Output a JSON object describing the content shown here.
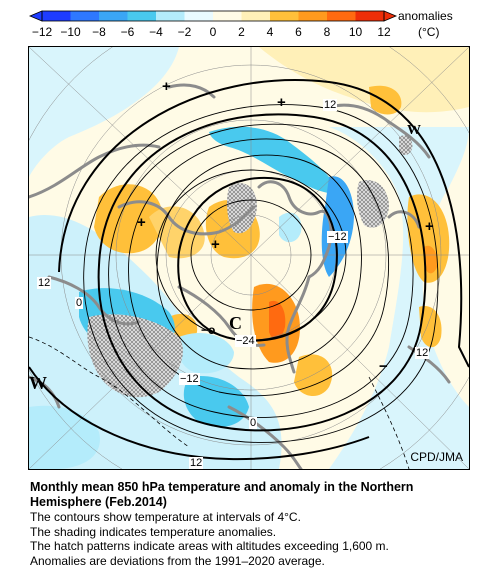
{
  "colorbar": {
    "title": "anomalies",
    "unit": "(°C)",
    "ticks": [
      "−12",
      "−10",
      "−8",
      "−6",
      "−4",
      "−2",
      "0",
      "2",
      "4",
      "6",
      "8",
      "10",
      "12"
    ],
    "colors": [
      "#1e3cff",
      "#2e78ff",
      "#3aa6f5",
      "#49c9ee",
      "#b4ecfb",
      "#eafbff",
      "#fffbe6",
      "#fff0b8",
      "#ffc03a",
      "#ff9a1e",
      "#ff6a10",
      "#ee2e08"
    ]
  },
  "map": {
    "contour_labels": [
      "12",
      "−12",
      "12",
      "0",
      "−24",
      "−12",
      "0",
      "12",
      "12"
    ],
    "symbols": {
      "plus": "+",
      "minus": "−",
      "low_marker": "−o",
      "cold_center": "C",
      "west_marker": "W"
    },
    "credit": "CPD/JMA"
  },
  "caption": {
    "title": "Monthly mean 850 hPa temperature and anomaly in the Northern Hemisphere (Feb.2014)",
    "lines": [
      "The contours show temperature at intervals of 4°C.",
      "The shading indicates temperature anomalies.",
      "The hatch patterns indicate areas with altitudes exceeding 1,600 m.",
      "Anomalies are deviations from the 1991–2020 average."
    ]
  }
}
